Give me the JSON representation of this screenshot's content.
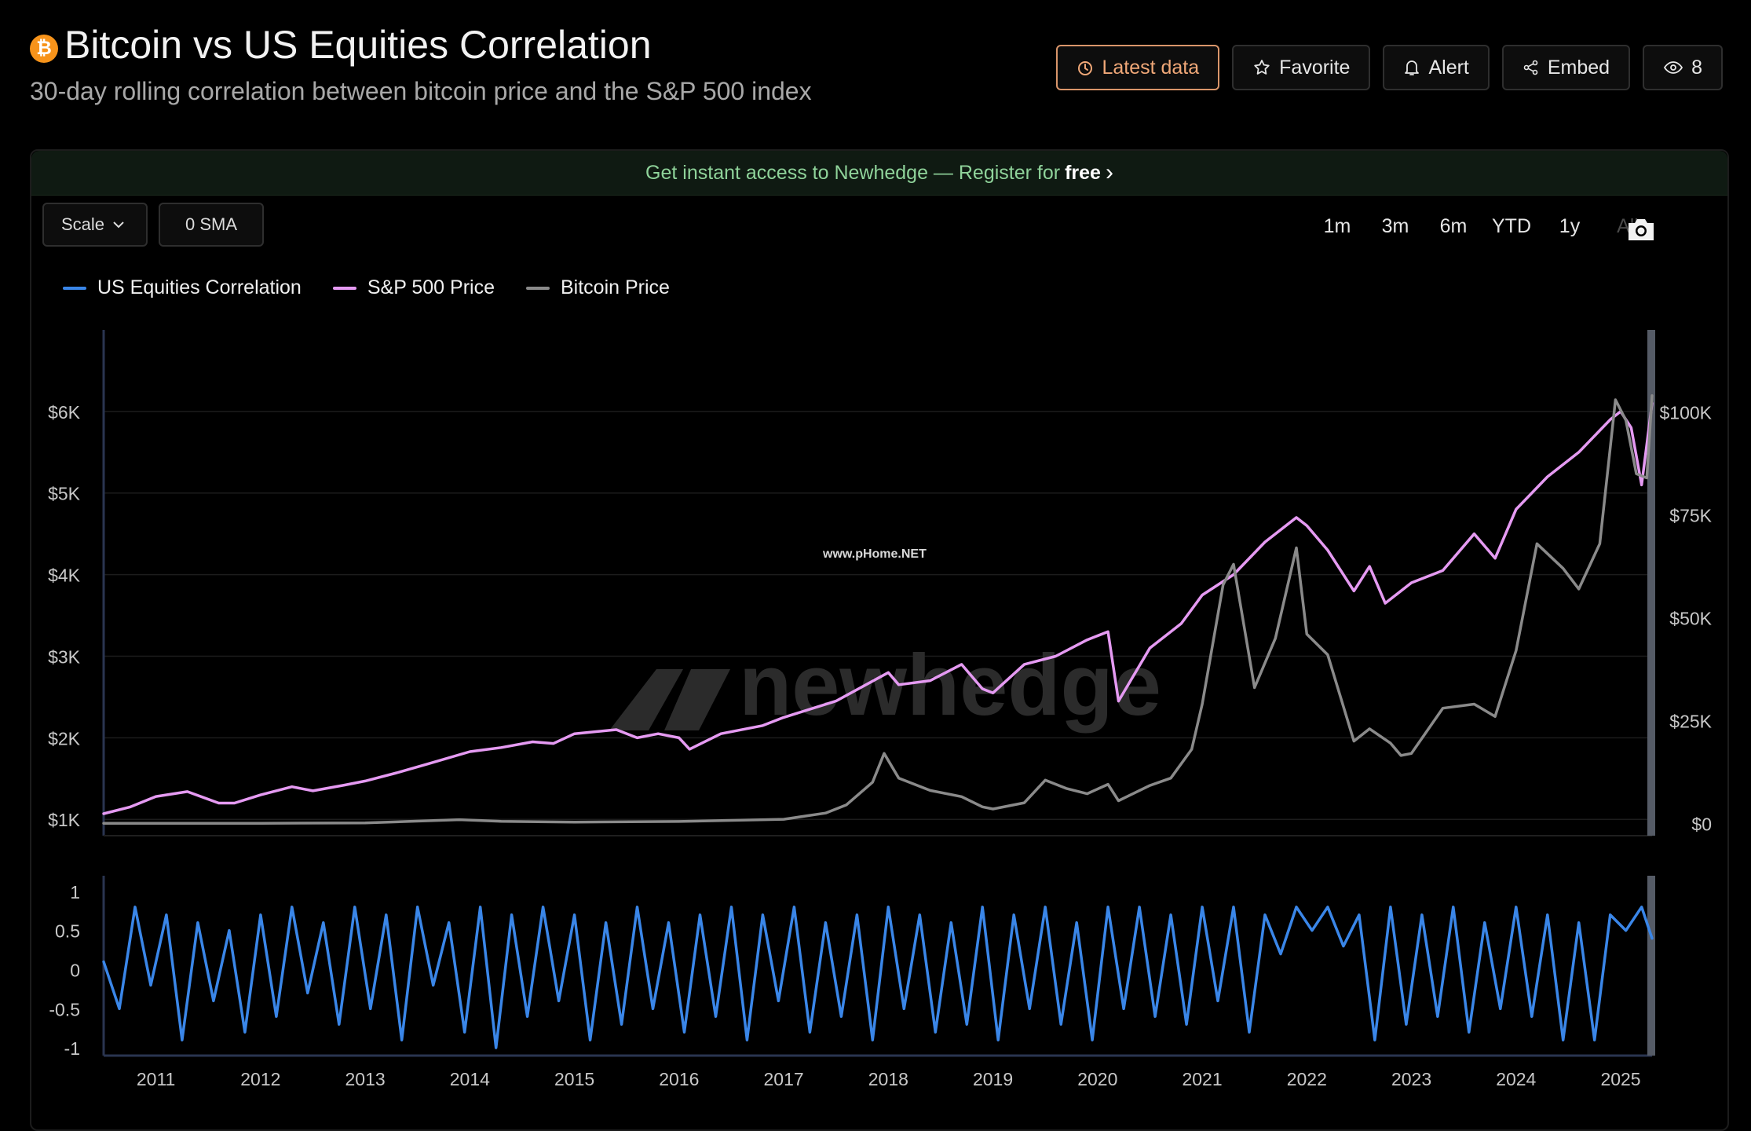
{
  "header": {
    "badge_symbol": "₿",
    "title": "Bitcoin vs US Equities Correlation",
    "subtitle": "30-day rolling correlation between bitcoin price and the S&P 500 index"
  },
  "actions": {
    "latest_data": "Latest data",
    "favorite": "Favorite",
    "alert": "Alert",
    "embed": "Embed",
    "views": "8"
  },
  "banner": {
    "text": "Get instant access to Newhedge — Register for",
    "emphasis": "free",
    "chevron": "›"
  },
  "controls": {
    "scale": "Scale",
    "sma": "0 SMA",
    "ranges": [
      "1m",
      "3m",
      "6m",
      "YTD",
      "1y",
      "All"
    ],
    "active_range": "All"
  },
  "watermark": {
    "brand": "newhedge",
    "site": "www.pHome.NET"
  },
  "colors": {
    "correlation": "#3a86e8",
    "sp500": "#e59af2",
    "bitcoin": "#8a8a8a",
    "accent": "#f0a878",
    "banner_text": "#8fd39a"
  },
  "chart_data": {
    "type": "line",
    "title": "Bitcoin vs US Equities Correlation",
    "legend": [
      "US Equities Correlation",
      "S&P 500 Price",
      "Bitcoin Price"
    ],
    "legend_position": "top-left",
    "x_ticks": [
      "2011",
      "2012",
      "2013",
      "2014",
      "2015",
      "2016",
      "2017",
      "2018",
      "2019",
      "2020",
      "2021",
      "2022",
      "2023",
      "2024",
      "2025"
    ],
    "x_range": [
      2010.5,
      2025.3
    ],
    "upper_panel": {
      "left_axis": {
        "series": "S&P 500 Price",
        "ticks": [
          "$1K",
          "$2K",
          "$3K",
          "$4K",
          "$5K",
          "$6K"
        ],
        "range": [
          800,
          7000
        ]
      },
      "right_axis": {
        "series": "Bitcoin Price",
        "ticks": [
          "$0",
          "$25K",
          "$50K",
          "$75K",
          "$100K"
        ],
        "range": [
          -3000,
          120000
        ]
      },
      "grid": true
    },
    "lower_panel": {
      "axis": {
        "series": "US Equities Correlation",
        "ticks": [
          "1",
          "0.5",
          "0",
          "-0.5",
          "-1"
        ],
        "range": [
          -1.1,
          1.2
        ]
      },
      "grid": false
    },
    "series": [
      {
        "name": "S&P 500 Price",
        "axis": "left",
        "x": [
          2010.5,
          2010.75,
          2011.0,
          2011.3,
          2011.6,
          2011.75,
          2012.0,
          2012.3,
          2012.5,
          2012.8,
          2013.0,
          2013.3,
          2013.6,
          2014.0,
          2014.3,
          2014.6,
          2014.8,
          2015.0,
          2015.4,
          2015.6,
          2015.8,
          2016.0,
          2016.1,
          2016.4,
          2016.8,
          2017.0,
          2017.5,
          2018.0,
          2018.1,
          2018.4,
          2018.7,
          2018.9,
          2019.0,
          2019.3,
          2019.6,
          2019.9,
          2020.1,
          2020.2,
          2020.5,
          2020.8,
          2021.0,
          2021.3,
          2021.6,
          2021.9,
          2022.0,
          2022.2,
          2022.45,
          2022.6,
          2022.75,
          2023.0,
          2023.3,
          2023.6,
          2023.8,
          2024.0,
          2024.3,
          2024.6,
          2024.9,
          2025.0,
          2025.1,
          2025.2,
          2025.3
        ],
        "values": [
          1070,
          1150,
          1280,
          1340,
          1200,
          1200,
          1300,
          1400,
          1350,
          1420,
          1470,
          1570,
          1680,
          1830,
          1880,
          1950,
          1930,
          2050,
          2100,
          2000,
          2050,
          2000,
          1860,
          2050,
          2150,
          2250,
          2450,
          2800,
          2650,
          2700,
          2900,
          2600,
          2550,
          2900,
          3000,
          3200,
          3300,
          2450,
          3100,
          3400,
          3750,
          4000,
          4400,
          4700,
          4600,
          4300,
          3800,
          4100,
          3650,
          3900,
          4050,
          4500,
          4200,
          4800,
          5200,
          5500,
          5900,
          6000,
          5800,
          5100,
          6100
        ]
      },
      {
        "name": "Bitcoin Price",
        "axis": "right",
        "x": [
          2010.5,
          2012.0,
          2013.0,
          2013.9,
          2014.3,
          2015.0,
          2016.0,
          2017.0,
          2017.4,
          2017.6,
          2017.85,
          2017.96,
          2018.1,
          2018.4,
          2018.7,
          2018.9,
          2019.0,
          2019.3,
          2019.5,
          2019.7,
          2019.9,
          2020.1,
          2020.2,
          2020.5,
          2020.7,
          2020.9,
          2021.0,
          2021.2,
          2021.3,
          2021.5,
          2021.7,
          2021.9,
          2022.0,
          2022.2,
          2022.45,
          2022.6,
          2022.8,
          2022.9,
          2023.0,
          2023.3,
          2023.6,
          2023.8,
          2024.0,
          2024.2,
          2024.45,
          2024.6,
          2024.8,
          2024.95,
          2025.05,
          2025.15,
          2025.25,
          2025.3
        ],
        "values": [
          0,
          10,
          100,
          900,
          500,
          300,
          450,
          1000,
          2500,
          4500,
          10000,
          17000,
          11000,
          8000,
          6500,
          4000,
          3500,
          5000,
          10500,
          8500,
          7200,
          9500,
          5500,
          9200,
          11000,
          18000,
          29000,
          58000,
          63000,
          33000,
          45000,
          67000,
          46000,
          41000,
          20000,
          23000,
          19500,
          16500,
          17000,
          28000,
          29000,
          26000,
          42000,
          68000,
          62000,
          57000,
          68000,
          103000,
          98000,
          85000,
          84000,
          104000
        ]
      },
      {
        "name": "US Equities Correlation",
        "axis": "lower",
        "x": [
          2010.5,
          2010.65,
          2010.8,
          2010.95,
          2011.1,
          2011.25,
          2011.4,
          2011.55,
          2011.7,
          2011.85,
          2012.0,
          2012.15,
          2012.3,
          2012.45,
          2012.6,
          2012.75,
          2012.9,
          2013.05,
          2013.2,
          2013.35,
          2013.5,
          2013.65,
          2013.8,
          2013.95,
          2014.1,
          2014.25,
          2014.4,
          2014.55,
          2014.7,
          2014.85,
          2015.0,
          2015.15,
          2015.3,
          2015.45,
          2015.6,
          2015.75,
          2015.9,
          2016.05,
          2016.2,
          2016.35,
          2016.5,
          2016.65,
          2016.8,
          2016.95,
          2017.1,
          2017.25,
          2017.4,
          2017.55,
          2017.7,
          2017.85,
          2018.0,
          2018.15,
          2018.3,
          2018.45,
          2018.6,
          2018.75,
          2018.9,
          2019.05,
          2019.2,
          2019.35,
          2019.5,
          2019.65,
          2019.8,
          2019.95,
          2020.1,
          2020.25,
          2020.4,
          2020.55,
          2020.7,
          2020.85,
          2021.0,
          2021.15,
          2021.3,
          2021.45,
          2021.6,
          2021.75,
          2021.9,
          2022.05,
          2022.2,
          2022.35,
          2022.5,
          2022.65,
          2022.8,
          2022.95,
          2023.1,
          2023.25,
          2023.4,
          2023.55,
          2023.7,
          2023.85,
          2024.0,
          2024.15,
          2024.3,
          2024.45,
          2024.6,
          2024.75,
          2024.9,
          2025.05,
          2025.2,
          2025.3
        ],
        "values": [
          0.1,
          -0.5,
          0.8,
          -0.2,
          0.7,
          -0.9,
          0.6,
          -0.4,
          0.5,
          -0.8,
          0.7,
          -0.6,
          0.8,
          -0.3,
          0.6,
          -0.7,
          0.8,
          -0.5,
          0.7,
          -0.9,
          0.8,
          -0.2,
          0.6,
          -0.8,
          0.8,
          -1.0,
          0.7,
          -0.6,
          0.8,
          -0.4,
          0.7,
          -0.9,
          0.6,
          -0.7,
          0.8,
          -0.5,
          0.6,
          -0.8,
          0.7,
          -0.6,
          0.8,
          -0.9,
          0.7,
          -0.4,
          0.8,
          -0.8,
          0.6,
          -0.6,
          0.7,
          -0.9,
          0.8,
          -0.5,
          0.7,
          -0.8,
          0.6,
          -0.7,
          0.8,
          -0.9,
          0.7,
          -0.5,
          0.8,
          -0.7,
          0.6,
          -0.9,
          0.8,
          -0.5,
          0.8,
          -0.6,
          0.7,
          -0.7,
          0.8,
          -0.4,
          0.8,
          -0.8,
          0.7,
          0.2,
          0.8,
          0.5,
          0.8,
          0.3,
          0.7,
          -0.9,
          0.8,
          -0.7,
          0.7,
          -0.6,
          0.8,
          -0.8,
          0.6,
          -0.5,
          0.8,
          -0.6,
          0.7,
          -0.9,
          0.6,
          -0.9,
          0.7,
          0.5,
          0.8,
          0.4
        ]
      }
    ]
  }
}
